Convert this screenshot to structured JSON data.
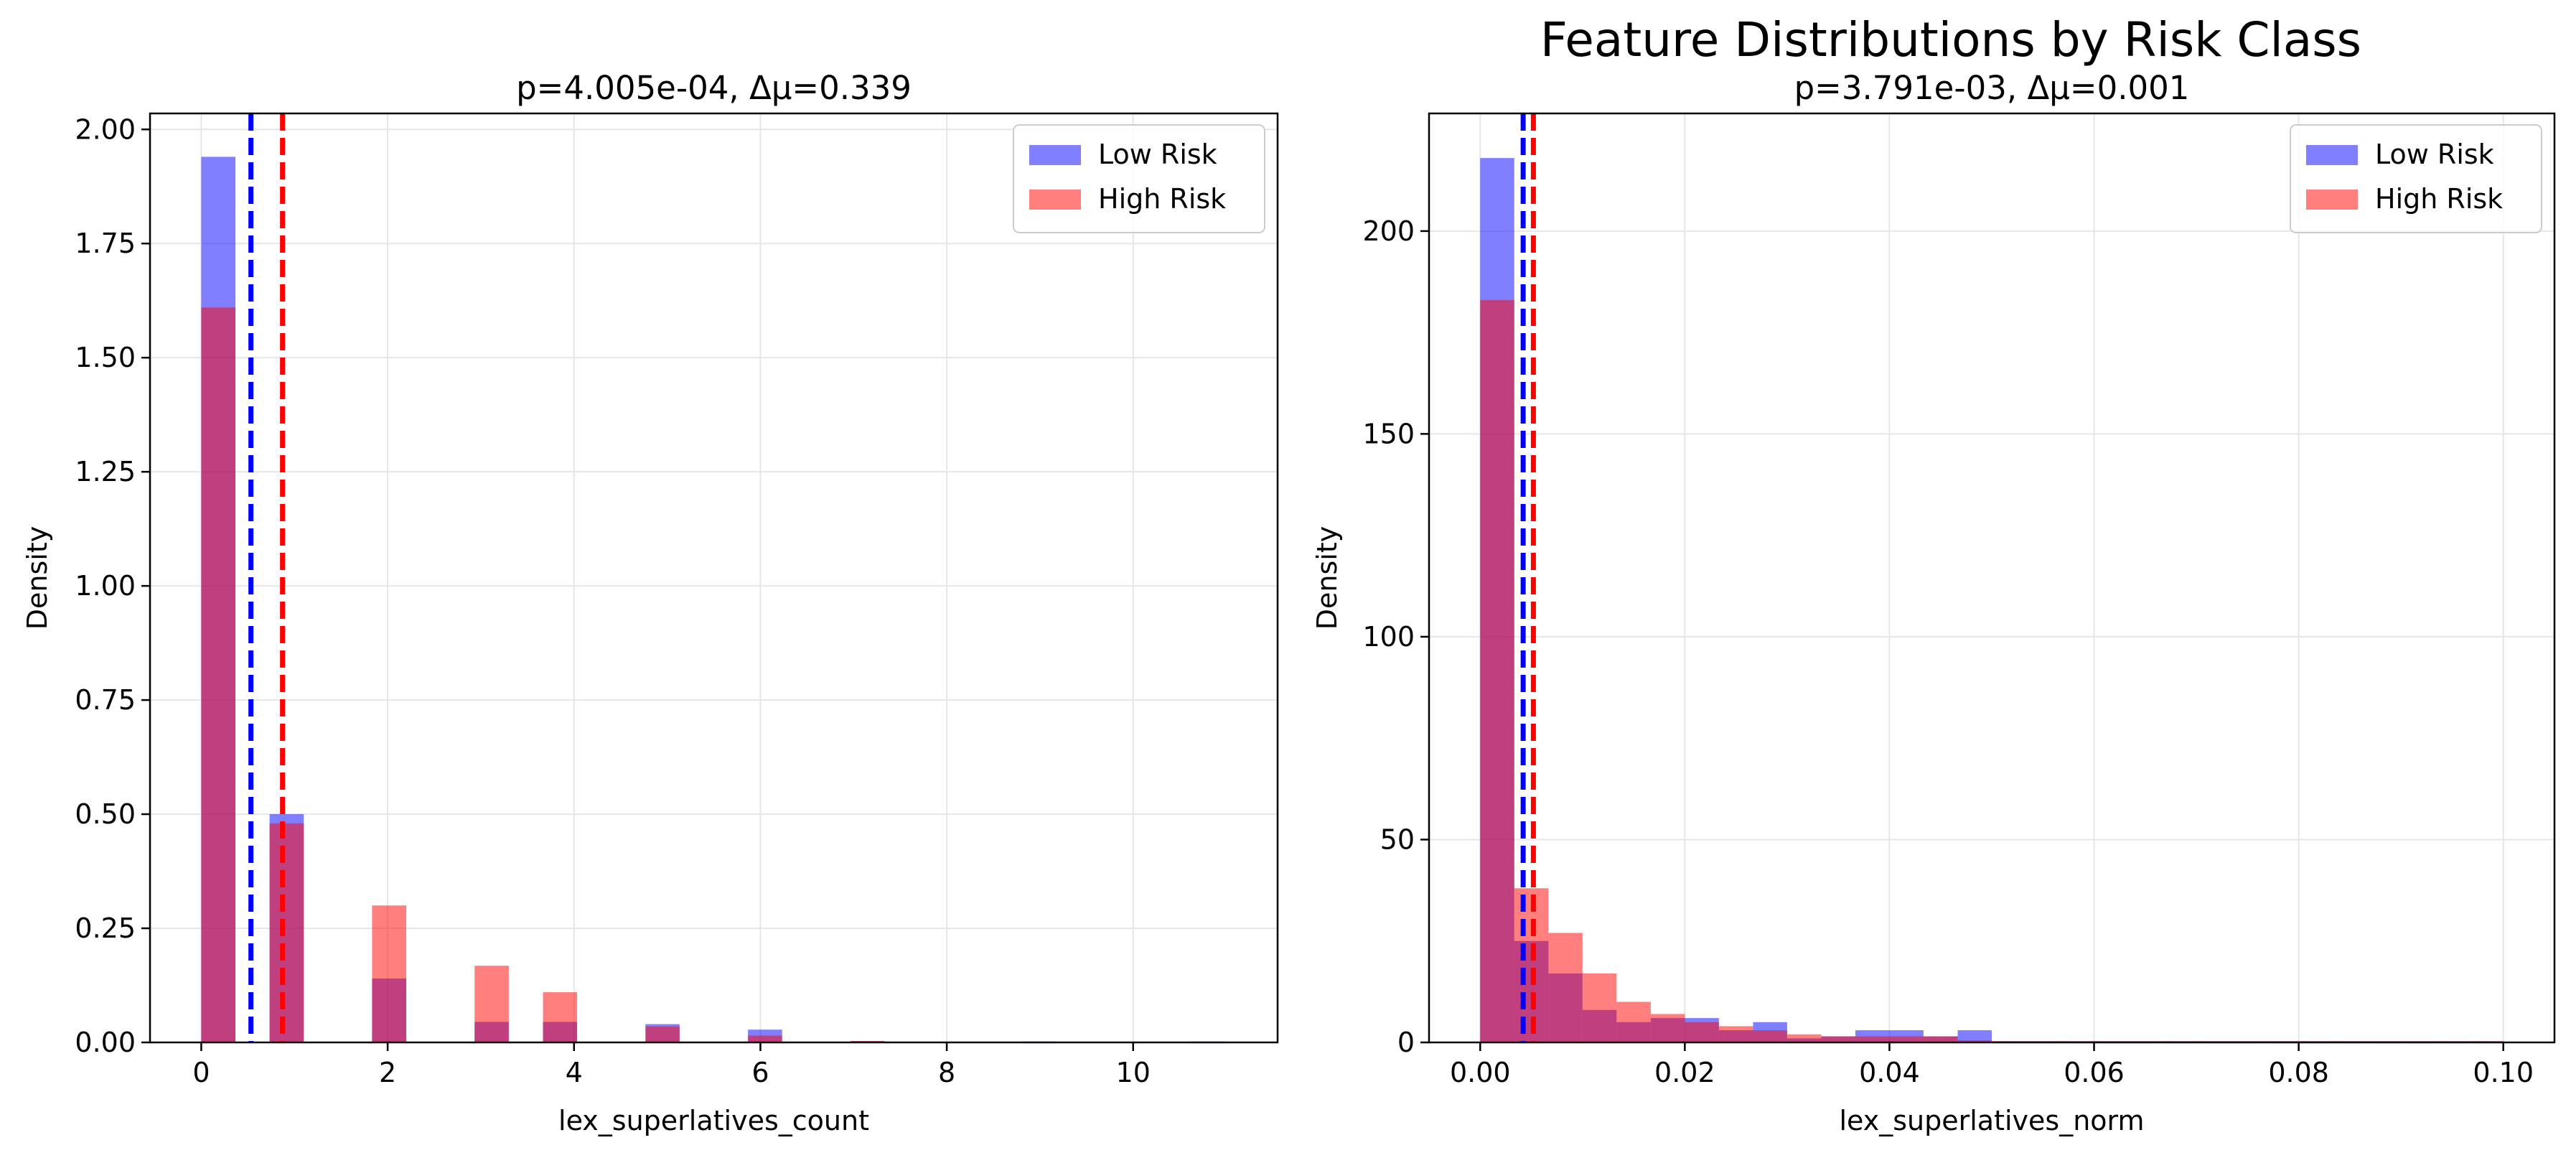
{
  "figure": {
    "suptitle": "Feature Distributions by Risk Class"
  },
  "colors": {
    "low": "#0000ff",
    "high": "#ff0000",
    "grid": "#e6e6e6",
    "axes": "#000000"
  },
  "chart_data": [
    {
      "type": "bar",
      "subtype": "overlaid histogram",
      "title": "p=4.005e-04, Δμ=0.339",
      "xlabel": "lex_superlatives_count",
      "ylabel": "Density",
      "xlim": [
        -0.55,
        11.55
      ],
      "ylim": [
        0,
        2.035
      ],
      "xticks": [
        0,
        2,
        4,
        6,
        8,
        10
      ],
      "xtick_labels": [
        "0",
        "2",
        "4",
        "6",
        "8",
        "10"
      ],
      "yticks": [
        0,
        0.25,
        0.5,
        0.75,
        1.0,
        1.25,
        1.5,
        1.75,
        2.0
      ],
      "ytick_labels": [
        "0.00",
        "0.25",
        "0.50",
        "0.75",
        "1.00",
        "1.25",
        "1.50",
        "1.75",
        "2.00"
      ],
      "grid": true,
      "legend_position": "top-right",
      "bin_edges": [
        0,
        0.367,
        0.733,
        1.1,
        1.467,
        1.833,
        2.2,
        2.567,
        2.933,
        3.3,
        3.667,
        4.033,
        4.4,
        4.767,
        5.133,
        5.5,
        5.867,
        6.233,
        6.6,
        6.967,
        7.333,
        7.7,
        8.067,
        8.433,
        8.8,
        9.167,
        9.533,
        9.9,
        10.267,
        10.633,
        11.0
      ],
      "series": [
        {
          "name": "Low Risk",
          "color": "#0000ff",
          "alpha": 0.5,
          "values": [
            1.94,
            0,
            0.5,
            0,
            0,
            0.14,
            0,
            0,
            0.045,
            0,
            0.045,
            0,
            0,
            0.04,
            0,
            0,
            0.028,
            0,
            0,
            0.003,
            0,
            0,
            0,
            0,
            0.002,
            0,
            0,
            0,
            0,
            0.002
          ],
          "mean": 0.533
        },
        {
          "name": "High Risk",
          "color": "#ff0000",
          "alpha": 0.5,
          "values": [
            1.61,
            0,
            0.48,
            0,
            0,
            0.3,
            0,
            0,
            0.168,
            0,
            0.11,
            0,
            0,
            0.035,
            0,
            0,
            0.015,
            0,
            0,
            0.003,
            0,
            0,
            0,
            0,
            0,
            0,
            0,
            0,
            0,
            0
          ],
          "mean": 0.872
        }
      ]
    },
    {
      "type": "bar",
      "subtype": "overlaid histogram",
      "title": "p=3.791e-03, Δμ=0.001",
      "xlabel": "lex_superlatives_norm",
      "ylabel": "Density",
      "xlim": [
        -0.005,
        0.105
      ],
      "ylim": [
        0,
        229
      ],
      "xticks": [
        0,
        0.02,
        0.04,
        0.06,
        0.08,
        0.1
      ],
      "xtick_labels": [
        "0.00",
        "0.02",
        "0.04",
        "0.06",
        "0.08",
        "0.10"
      ],
      "yticks": [
        0,
        50,
        100,
        150,
        200
      ],
      "ytick_labels": [
        "0",
        "50",
        "100",
        "150",
        "200"
      ],
      "grid": true,
      "legend_position": "top-right",
      "bin_edges": [
        0,
        0.00333,
        0.00667,
        0.01,
        0.01333,
        0.01667,
        0.02,
        0.02333,
        0.02667,
        0.03,
        0.03333,
        0.03667,
        0.04,
        0.04333,
        0.04667,
        0.05,
        0.05333,
        0.05667,
        0.06,
        0.06333,
        0.06667,
        0.07,
        0.07333,
        0.07667,
        0.08,
        0.08333,
        0.08667,
        0.09,
        0.09333,
        0.09667,
        0.1
      ],
      "series": [
        {
          "name": "Low Risk",
          "color": "#0000ff",
          "alpha": 0.5,
          "values": [
            218,
            25,
            17,
            8,
            5,
            6,
            6,
            3,
            5,
            1,
            1.5,
            3,
            3,
            1.5,
            3,
            0.3,
            0.3,
            0.3,
            0.3,
            0.3,
            0.3,
            0.3,
            0.3,
            0.3,
            0.3,
            0.3,
            0.3,
            0.3,
            0.3,
            0.3
          ],
          "mean": 0.0042
        },
        {
          "name": "High Risk",
          "color": "#ff0000",
          "alpha": 0.5,
          "values": [
            183,
            38,
            27,
            17,
            10,
            7,
            5,
            4,
            3,
            2,
            1.5,
            1.5,
            1.5,
            1.5,
            0.5,
            0.3,
            0.3,
            0.3,
            0.3,
            0.3,
            0.3,
            0.3,
            0.3,
            0.3,
            0.3,
            0.3,
            0.3,
            0.3,
            0.3,
            0.3
          ],
          "mean": 0.0052
        }
      ]
    }
  ]
}
